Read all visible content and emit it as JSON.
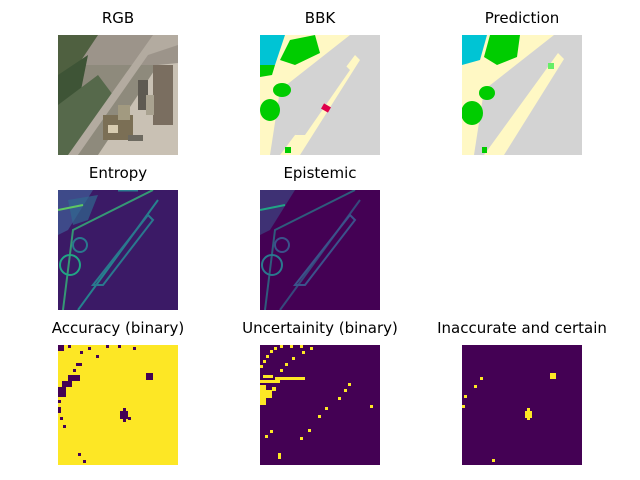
{
  "panels": {
    "rgb": {
      "title": "RGB"
    },
    "bbk": {
      "title": "BBK"
    },
    "prediction": {
      "title": "Prediction"
    },
    "entropy": {
      "title": "Entropy"
    },
    "epistemic": {
      "title": "Epistemic"
    },
    "accuracy": {
      "title": "Accuracy (binary)"
    },
    "uncertainty": {
      "title": "Uncertainity (binary)"
    },
    "inaccurate": {
      "title": "Inaccurate and certain"
    }
  },
  "colors": {
    "viridis_dark": "#440154",
    "viridis_yellow": "#fde725",
    "class_gray": "#d3d3d3",
    "class_cream": "#fff8c4",
    "class_green": "#00cc00",
    "class_cyan": "#00c4d4",
    "class_red": "#e0004a"
  }
}
